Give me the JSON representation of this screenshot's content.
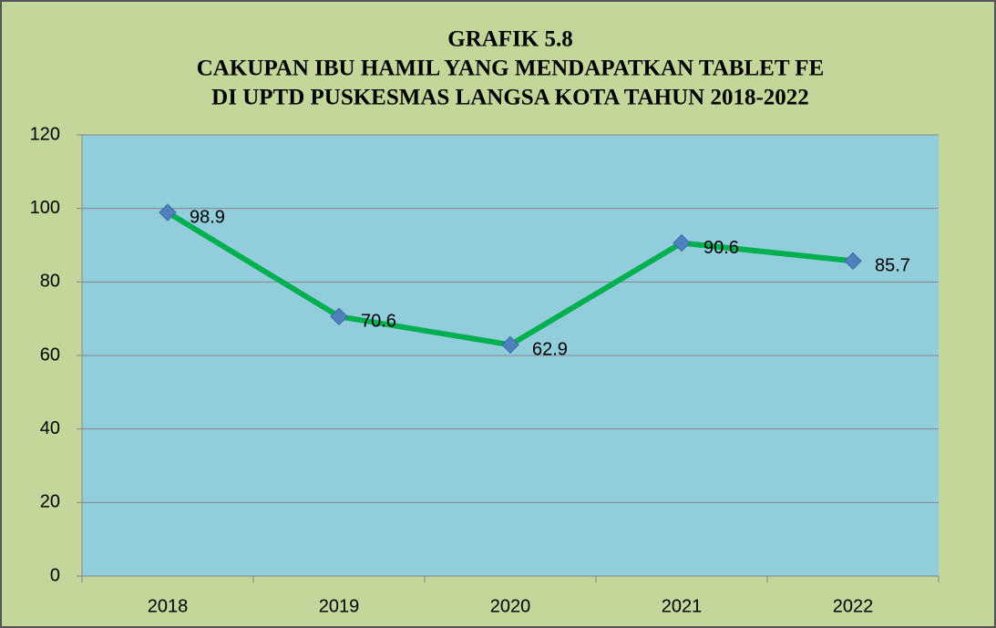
{
  "chart_data": {
    "type": "line",
    "title": [
      "GRAFIK 5.8",
      "CAKUPAN IBU HAMIL YANG MENDAPATKAN TABLET FE",
      "DI UPTD PUSKESMAS LANGSA KOTA TAHUN 2018-2022"
    ],
    "categories": [
      "2018",
      "2019",
      "2020",
      "2021",
      "2022"
    ],
    "values": [
      98.9,
      70.6,
      62.9,
      90.6,
      85.7
    ],
    "color": "#00b050",
    "marker_color": "#4f81bd",
    "ylim": [
      0,
      120
    ],
    "yticks": [
      0,
      20,
      40,
      60,
      80,
      100,
      120
    ],
    "grid": true
  }
}
